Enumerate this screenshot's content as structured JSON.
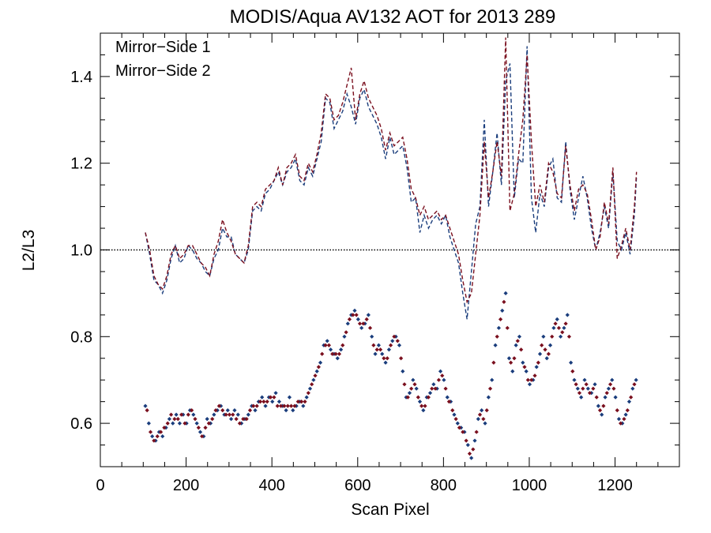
{
  "colors": {
    "series1": "#1a3d7c",
    "series2": "#7a0f1e",
    "reference": "#000000"
  },
  "chart_data": {
    "type": "line",
    "title": "MODIS/Aqua AV132 AOT for 2013 289",
    "xlabel": "Scan Pixel",
    "ylabel": "L2/L3",
    "xlim": [
      0,
      1350
    ],
    "ylim": [
      0.5,
      1.5
    ],
    "x_ticks": [
      "0",
      "200",
      "400",
      "600",
      "800",
      "1000",
      "1200"
    ],
    "y_ticks": [
      "0.6",
      "0.8",
      "1.0",
      "1.2",
      "1.4"
    ],
    "reference_line": 1.0,
    "legend_position": "top-left",
    "series": [
      {
        "name": "Mirror−Side 1",
        "style": "dashed",
        "x": [
          105,
          115,
          125,
          135,
          145,
          155,
          165,
          175,
          185,
          195,
          205,
          215,
          225,
          235,
          245,
          255,
          265,
          275,
          285,
          295,
          305,
          315,
          325,
          335,
          345,
          355,
          365,
          375,
          385,
          395,
          405,
          415,
          425,
          435,
          445,
          455,
          465,
          475,
          485,
          495,
          505,
          515,
          525,
          535,
          545,
          555,
          565,
          575,
          585,
          595,
          605,
          615,
          625,
          635,
          645,
          655,
          665,
          675,
          685,
          695,
          705,
          715,
          725,
          735,
          745,
          755,
          765,
          775,
          785,
          795,
          805,
          815,
          825,
          835,
          845,
          855,
          865,
          875,
          885,
          895,
          905,
          915,
          925,
          935,
          945,
          955,
          965,
          975,
          985,
          995,
          1005,
          1015,
          1025,
          1035,
          1045,
          1055,
          1065,
          1075,
          1085,
          1095,
          1105,
          1115,
          1125,
          1135,
          1145,
          1155,
          1165,
          1175,
          1185,
          1195,
          1205,
          1215,
          1225,
          1235,
          1245,
          1250
        ],
        "y": [
          1.04,
          0.99,
          0.93,
          0.92,
          0.9,
          0.93,
          0.98,
          1.01,
          0.97,
          0.98,
          1.01,
          1.0,
          0.98,
          0.97,
          0.95,
          0.94,
          0.98,
          1.0,
          1.05,
          1.03,
          1.03,
          0.99,
          0.98,
          0.97,
          1.0,
          1.09,
          1.1,
          1.09,
          1.13,
          1.14,
          1.16,
          1.18,
          1.15,
          1.18,
          1.19,
          1.21,
          1.16,
          1.15,
          1.19,
          1.17,
          1.21,
          1.25,
          1.35,
          1.34,
          1.28,
          1.3,
          1.32,
          1.36,
          1.33,
          1.29,
          1.35,
          1.37,
          1.33,
          1.31,
          1.29,
          1.26,
          1.21,
          1.26,
          1.22,
          1.23,
          1.24,
          1.19,
          1.11,
          1.12,
          1.04,
          1.08,
          1.05,
          1.07,
          1.08,
          1.06,
          1.08,
          1.03,
          1.0,
          0.97,
          0.9,
          0.84,
          0.95,
          1.06,
          1.1,
          1.3,
          1.1,
          1.18,
          1.27,
          1.15,
          1.39,
          1.43,
          1.12,
          1.21,
          1.2,
          1.47,
          1.12,
          1.04,
          1.13,
          1.1,
          1.19,
          1.21,
          1.12,
          1.11,
          1.25,
          1.14,
          1.07,
          1.12,
          1.17,
          1.12,
          1.05,
          1.0,
          1.04,
          1.1,
          1.05,
          1.18,
          1.02,
          1.0,
          1.04,
          0.99,
          1.08,
          1.17
        ]
      },
      {
        "name": "Mirror−Side 2",
        "style": "dashed",
        "x": [
          105,
          115,
          125,
          135,
          145,
          155,
          165,
          175,
          185,
          195,
          205,
          215,
          225,
          235,
          245,
          255,
          265,
          275,
          285,
          295,
          305,
          315,
          325,
          335,
          345,
          355,
          365,
          375,
          385,
          395,
          405,
          415,
          425,
          435,
          445,
          455,
          465,
          475,
          485,
          495,
          505,
          515,
          525,
          535,
          545,
          555,
          565,
          575,
          585,
          595,
          605,
          615,
          625,
          635,
          645,
          655,
          665,
          675,
          685,
          695,
          705,
          715,
          725,
          735,
          745,
          755,
          765,
          775,
          785,
          795,
          805,
          815,
          825,
          835,
          845,
          855,
          865,
          875,
          885,
          895,
          905,
          915,
          925,
          935,
          945,
          955,
          965,
          975,
          985,
          995,
          1005,
          1015,
          1025,
          1035,
          1045,
          1055,
          1065,
          1075,
          1085,
          1095,
          1105,
          1115,
          1125,
          1135,
          1145,
          1155,
          1165,
          1175,
          1185,
          1195,
          1205,
          1215,
          1225,
          1235,
          1245,
          1250
        ],
        "y": [
          1.04,
          1.0,
          0.94,
          0.92,
          0.91,
          0.94,
          0.99,
          1.01,
          0.98,
          0.99,
          1.01,
          1.01,
          0.99,
          0.97,
          0.96,
          0.94,
          0.99,
          1.02,
          1.07,
          1.04,
          1.02,
          0.99,
          0.98,
          0.97,
          1.01,
          1.1,
          1.11,
          1.1,
          1.14,
          1.15,
          1.16,
          1.19,
          1.15,
          1.19,
          1.2,
          1.22,
          1.17,
          1.16,
          1.2,
          1.18,
          1.22,
          1.27,
          1.36,
          1.35,
          1.3,
          1.31,
          1.34,
          1.38,
          1.42,
          1.3,
          1.36,
          1.39,
          1.35,
          1.33,
          1.31,
          1.28,
          1.23,
          1.27,
          1.24,
          1.25,
          1.26,
          1.21,
          1.14,
          1.12,
          1.08,
          1.1,
          1.07,
          1.08,
          1.09,
          1.07,
          1.08,
          1.05,
          1.02,
          0.99,
          0.93,
          0.88,
          0.9,
          0.99,
          1.08,
          1.25,
          1.12,
          1.18,
          1.25,
          1.17,
          1.49,
          1.09,
          1.13,
          1.22,
          1.3,
          1.45,
          1.25,
          1.1,
          1.15,
          1.11,
          1.2,
          1.18,
          1.13,
          1.12,
          1.24,
          1.15,
          1.09,
          1.14,
          1.15,
          1.13,
          1.07,
          1.0,
          1.03,
          1.11,
          1.06,
          1.19,
          0.98,
          1.01,
          1.05,
          1.0,
          1.1,
          1.18
        ]
      }
    ],
    "scatter_series": [
      {
        "name": "Mirror−Side 1",
        "x": [
          105,
          113,
          121,
          129,
          137,
          145,
          153,
          161,
          169,
          177,
          185,
          193,
          201,
          209,
          217,
          225,
          233,
          241,
          249,
          257,
          265,
          273,
          281,
          289,
          297,
          305,
          313,
          321,
          329,
          337,
          345,
          353,
          361,
          369,
          377,
          385,
          393,
          401,
          409,
          417,
          425,
          433,
          441,
          449,
          457,
          465,
          473,
          481,
          489,
          497,
          505,
          513,
          521,
          529,
          537,
          545,
          553,
          561,
          569,
          577,
          585,
          593,
          601,
          609,
          617,
          625,
          633,
          641,
          649,
          657,
          665,
          673,
          681,
          689,
          697,
          705,
          713,
          721,
          729,
          737,
          745,
          753,
          761,
          769,
          777,
          785,
          793,
          801,
          809,
          817,
          825,
          833,
          841,
          849,
          857,
          865,
          873,
          881,
          889,
          897,
          905,
          913,
          921,
          929,
          937,
          945,
          953,
          961,
          969,
          977,
          985,
          993,
          1001,
          1009,
          1017,
          1025,
          1033,
          1041,
          1049,
          1057,
          1065,
          1073,
          1081,
          1089,
          1097,
          1105,
          1113,
          1121,
          1129,
          1137,
          1145,
          1153,
          1161,
          1169,
          1177,
          1185,
          1193,
          1201,
          1209,
          1217,
          1225,
          1233,
          1241,
          1249
        ],
        "y": [
          0.64,
          0.6,
          0.57,
          0.56,
          0.58,
          0.57,
          0.59,
          0.61,
          0.6,
          0.62,
          0.6,
          0.62,
          0.6,
          0.63,
          0.62,
          0.6,
          0.58,
          0.57,
          0.61,
          0.6,
          0.62,
          0.63,
          0.64,
          0.62,
          0.63,
          0.61,
          0.63,
          0.62,
          0.6,
          0.61,
          0.62,
          0.64,
          0.63,
          0.65,
          0.66,
          0.64,
          0.66,
          0.65,
          0.67,
          0.65,
          0.64,
          0.63,
          0.66,
          0.63,
          0.64,
          0.65,
          0.64,
          0.66,
          0.68,
          0.7,
          0.72,
          0.74,
          0.78,
          0.79,
          0.77,
          0.76,
          0.75,
          0.77,
          0.8,
          0.83,
          0.85,
          0.86,
          0.84,
          0.82,
          0.83,
          0.85,
          0.8,
          0.76,
          0.78,
          0.76,
          0.74,
          0.77,
          0.79,
          0.8,
          0.78,
          0.72,
          0.66,
          0.67,
          0.7,
          0.68,
          0.65,
          0.63,
          0.66,
          0.67,
          0.69,
          0.68,
          0.72,
          0.7,
          0.66,
          0.65,
          0.62,
          0.6,
          0.59,
          0.58,
          0.55,
          0.52,
          0.56,
          0.61,
          0.63,
          0.6,
          0.66,
          0.7,
          0.78,
          0.82,
          0.86,
          0.9,
          0.75,
          0.72,
          0.78,
          0.8,
          0.74,
          0.72,
          0.69,
          0.7,
          0.73,
          0.76,
          0.8,
          0.75,
          0.78,
          0.82,
          0.84,
          0.8,
          0.82,
          0.85,
          0.74,
          0.7,
          0.68,
          0.66,
          0.7,
          0.68,
          0.67,
          0.69,
          0.64,
          0.62,
          0.66,
          0.68,
          0.7,
          0.66,
          0.61,
          0.6,
          0.62,
          0.65,
          0.68,
          0.7
        ]
      },
      {
        "name": "Mirror−Side 2",
        "x": [
          109,
          117,
          125,
          133,
          141,
          149,
          157,
          165,
          173,
          181,
          189,
          197,
          205,
          213,
          221,
          229,
          237,
          245,
          253,
          261,
          269,
          277,
          285,
          293,
          301,
          309,
          317,
          325,
          333,
          341,
          349,
          357,
          365,
          373,
          381,
          389,
          397,
          405,
          413,
          421,
          429,
          437,
          445,
          453,
          461,
          469,
          477,
          485,
          493,
          501,
          509,
          517,
          525,
          533,
          541,
          549,
          557,
          565,
          573,
          581,
          589,
          597,
          605,
          613,
          621,
          629,
          637,
          645,
          653,
          661,
          669,
          677,
          685,
          693,
          701,
          709,
          717,
          725,
          733,
          741,
          749,
          757,
          765,
          773,
          781,
          789,
          797,
          805,
          813,
          821,
          829,
          837,
          845,
          853,
          861,
          869,
          877,
          885,
          893,
          901,
          909,
          917,
          925,
          933,
          941,
          949,
          957,
          965,
          973,
          981,
          989,
          997,
          1005,
          1013,
          1021,
          1029,
          1037,
          1045,
          1053,
          1061,
          1069,
          1077,
          1085,
          1093,
          1101,
          1109,
          1117,
          1125,
          1133,
          1141,
          1149,
          1157,
          1165,
          1173,
          1181,
          1189,
          1197,
          1205,
          1213,
          1221,
          1229,
          1237,
          1245
        ],
        "y": [
          0.63,
          0.58,
          0.56,
          0.57,
          0.58,
          0.59,
          0.6,
          0.62,
          0.61,
          0.61,
          0.62,
          0.6,
          0.62,
          0.63,
          0.61,
          0.59,
          0.57,
          0.59,
          0.6,
          0.61,
          0.63,
          0.64,
          0.63,
          0.62,
          0.62,
          0.62,
          0.61,
          0.6,
          0.61,
          0.61,
          0.63,
          0.64,
          0.64,
          0.65,
          0.65,
          0.65,
          0.66,
          0.66,
          0.64,
          0.64,
          0.64,
          0.64,
          0.64,
          0.64,
          0.65,
          0.65,
          0.65,
          0.67,
          0.69,
          0.71,
          0.73,
          0.76,
          0.78,
          0.78,
          0.76,
          0.76,
          0.76,
          0.78,
          0.81,
          0.84,
          0.85,
          0.85,
          0.83,
          0.83,
          0.84,
          0.82,
          0.78,
          0.77,
          0.77,
          0.75,
          0.75,
          0.78,
          0.8,
          0.79,
          0.75,
          0.69,
          0.66,
          0.68,
          0.69,
          0.66,
          0.64,
          0.64,
          0.66,
          0.68,
          0.68,
          0.7,
          0.71,
          0.68,
          0.65,
          0.63,
          0.61,
          0.59,
          0.58,
          0.56,
          0.53,
          0.54,
          0.58,
          0.62,
          0.61,
          0.63,
          0.68,
          0.74,
          0.8,
          0.84,
          0.88,
          0.82,
          0.74,
          0.75,
          0.79,
          0.77,
          0.73,
          0.7,
          0.7,
          0.71,
          0.74,
          0.78,
          0.77,
          0.76,
          0.8,
          0.83,
          0.82,
          0.81,
          0.83,
          0.8,
          0.72,
          0.69,
          0.67,
          0.68,
          0.69,
          0.67,
          0.68,
          0.66,
          0.63,
          0.64,
          0.67,
          0.69,
          0.68,
          0.63,
          0.6,
          0.61,
          0.63,
          0.66,
          0.69
        ]
      }
    ]
  }
}
